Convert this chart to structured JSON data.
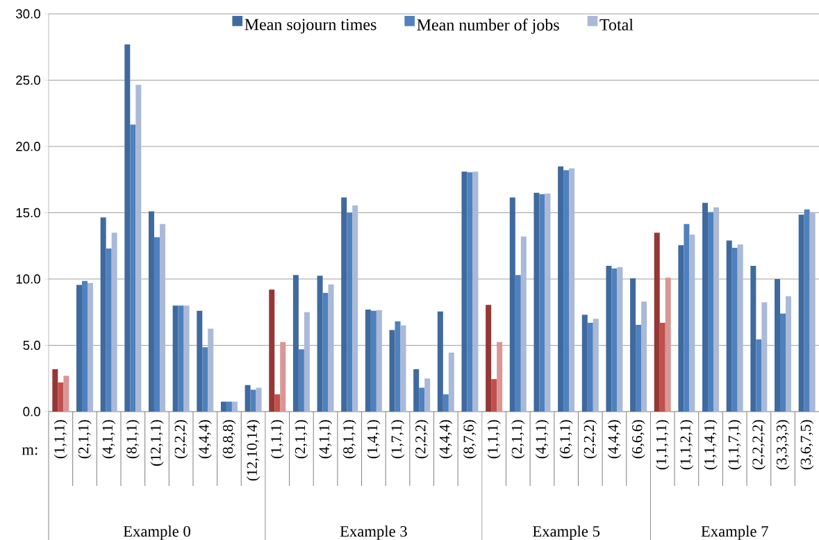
{
  "chart_data": {
    "type": "bar",
    "xlabel": "m:",
    "categories": [
      "(1,1,1)",
      "(2,1,1)",
      "(4,1,1)",
      "(8,1,1)",
      "(12,1,1)",
      "(2,2,2)",
      "(4,4,4)",
      "(8,8,8)",
      "(12,10,14)",
      "(1,1,1)",
      "(2,1,1)",
      "(4,1,1)",
      "(8,1,1)",
      "(1,4,1)",
      "(1,7,1)",
      "(2,2,2)",
      "(4,4,4)",
      "(8,7,6)",
      "(1,1,1)",
      "(2,1,1)",
      "(4,1,1)",
      "(6,1,1)",
      "(2,2,2)",
      "(4,4,4)",
      "(6,6,6)",
      "(1,1,1,1)",
      "(1,1,2,1)",
      "(1,1,4,1)",
      "(1,1,7,1)",
      "(2,2,2,2)",
      "(3,3,3,3)",
      "(3,6,7,5)"
    ],
    "series": [
      {
        "name": "Mean sojourn times",
        "color": "#3f6a9f",
        "values": [
          3.2,
          9.55,
          14.65,
          27.7,
          15.1,
          8.0,
          7.6,
          0.75,
          2.0,
          9.2,
          10.3,
          10.25,
          16.15,
          7.7,
          6.15,
          3.2,
          7.55,
          18.1,
          8.05,
          16.15,
          16.5,
          18.5,
          7.3,
          11.0,
          10.05,
          13.5,
          12.55,
          15.75,
          12.9,
          11.0,
          10.0,
          14.85
        ],
        "colors": [
          "#953735",
          "#3f6a9f",
          "#3f6a9f",
          "#3f6a9f",
          "#3f6a9f",
          "#3f6a9f",
          "#3f6a9f",
          "#3f6a9f",
          "#3f6a9f",
          "#953735",
          "#3f6a9f",
          "#3f6a9f",
          "#3f6a9f",
          "#3f6a9f",
          "#3f6a9f",
          "#3f6a9f",
          "#3f6a9f",
          "#3f6a9f",
          "#953735",
          "#3f6a9f",
          "#3f6a9f",
          "#3f6a9f",
          "#3f6a9f",
          "#3f6a9f",
          "#3f6a9f",
          "#953735",
          "#3f6a9f",
          "#3f6a9f",
          "#3f6a9f",
          "#3f6a9f",
          "#3f6a9f",
          "#3f6a9f"
        ]
      },
      {
        "name": "Mean number of jobs",
        "color": "#4f81bd",
        "values": [
          2.2,
          9.85,
          12.3,
          21.65,
          13.15,
          8.0,
          4.85,
          0.75,
          1.65,
          1.3,
          4.7,
          8.95,
          15.0,
          7.6,
          6.8,
          1.8,
          1.3,
          18.05,
          2.45,
          10.3,
          16.4,
          18.2,
          6.7,
          10.8,
          6.55,
          6.7,
          14.15,
          15.05,
          12.35,
          5.45,
          7.4,
          15.25
        ],
        "colors": [
          "#c0504d",
          "#4f81bd",
          "#4f81bd",
          "#4f81bd",
          "#4f81bd",
          "#4f81bd",
          "#4f81bd",
          "#4f81bd",
          "#4f81bd",
          "#c0504d",
          "#4f81bd",
          "#4f81bd",
          "#4f81bd",
          "#4f81bd",
          "#4f81bd",
          "#4f81bd",
          "#4f81bd",
          "#4f81bd",
          "#c0504d",
          "#4f81bd",
          "#4f81bd",
          "#4f81bd",
          "#4f81bd",
          "#4f81bd",
          "#4f81bd",
          "#c0504d",
          "#4f81bd",
          "#4f81bd",
          "#4f81bd",
          "#4f81bd",
          "#4f81bd",
          "#4f81bd"
        ]
      },
      {
        "name": "Total",
        "color": "#aab9d7",
        "values": [
          2.7,
          9.7,
          13.5,
          24.65,
          14.15,
          8.0,
          6.25,
          0.75,
          1.8,
          5.25,
          7.5,
          9.6,
          15.55,
          7.65,
          6.5,
          2.5,
          4.45,
          18.1,
          5.25,
          13.2,
          16.45,
          18.35,
          7.0,
          10.9,
          8.3,
          10.1,
          13.35,
          15.4,
          12.6,
          8.25,
          8.7,
          15.05
        ],
        "colors": [
          "#d99694",
          "#aab9d7",
          "#aab9d7",
          "#aab9d7",
          "#aab9d7",
          "#aab9d7",
          "#aab9d7",
          "#aab9d7",
          "#aab9d7",
          "#d99694",
          "#aab9d7",
          "#aab9d7",
          "#aab9d7",
          "#aab9d7",
          "#aab9d7",
          "#aab9d7",
          "#aab9d7",
          "#aab9d7",
          "#d99694",
          "#aab9d7",
          "#aab9d7",
          "#aab9d7",
          "#aab9d7",
          "#aab9d7",
          "#aab9d7",
          "#d99694",
          "#aab9d7",
          "#aab9d7",
          "#aab9d7",
          "#aab9d7",
          "#aab9d7",
          "#aab9d7"
        ]
      }
    ],
    "ylim": [
      0,
      30
    ],
    "yticks": [
      {
        "value": 0,
        "label": "0.0"
      },
      {
        "value": 5,
        "label": "5.0"
      },
      {
        "value": 10,
        "label": "10.0"
      },
      {
        "value": 15,
        "label": "15.0"
      },
      {
        "value": 20,
        "label": "20.0"
      },
      {
        "value": 25,
        "label": "25.0"
      },
      {
        "value": 30,
        "label": "30.0"
      }
    ],
    "grid": "y",
    "legend": "top",
    "annotations": [
      "Example 0",
      "Example 3",
      "Example 5",
      "Example 7"
    ]
  }
}
